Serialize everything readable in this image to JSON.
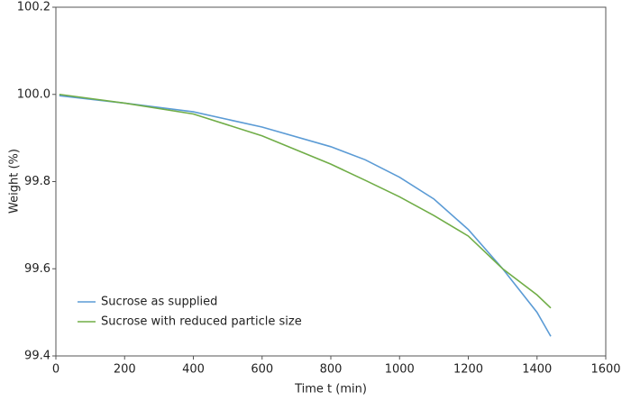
{
  "chart_data": {
    "type": "line",
    "x_label": "Time t (min)",
    "y_label": "Weight (%)",
    "x": [
      10,
      200,
      400,
      600,
      800,
      900,
      1000,
      1100,
      1200,
      1300,
      1400,
      1440
    ],
    "series": [
      {
        "name": "Sucrose as supplied",
        "color": "#5b9bd5",
        "values": [
          99.997,
          99.98,
          99.96,
          99.925,
          99.88,
          99.85,
          99.81,
          99.76,
          99.69,
          99.6,
          99.5,
          99.445
        ]
      },
      {
        "name": "Sucrose with reduced particle size",
        "color": "#70ad47",
        "values": [
          100.0,
          99.98,
          99.955,
          99.905,
          99.84,
          99.803,
          99.765,
          99.722,
          99.675,
          99.6,
          99.54,
          99.51
        ]
      }
    ],
    "xlim": [
      0,
      1600
    ],
    "xticks": [
      0,
      200,
      400,
      600,
      800,
      1000,
      1200,
      1400,
      1600
    ],
    "ylim": [
      99.4,
      100.2
    ],
    "yticks": [
      99.4,
      99.6,
      99.8,
      {
        "value": 100,
        "label": "100.0"
      },
      100.2
    ],
    "legend": "lower-left"
  }
}
